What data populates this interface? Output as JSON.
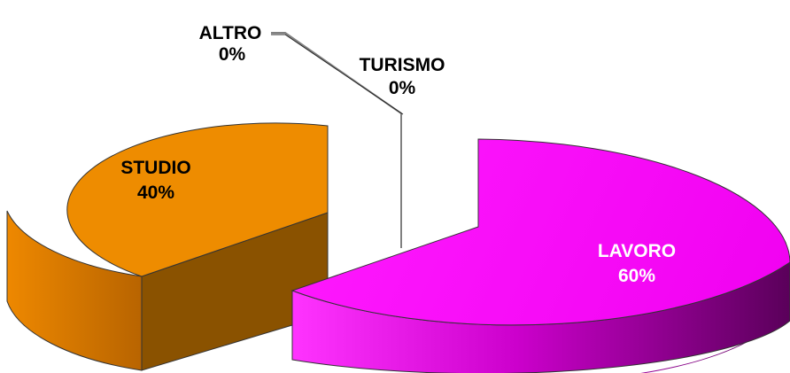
{
  "chart_data": {
    "type": "pie",
    "style": "3d-exploded",
    "slices": [
      {
        "label": "LAVORO",
        "value": 60,
        "value_text": "60%",
        "color": "#ff00ff",
        "label_color": "#ffffff"
      },
      {
        "label": "STUDIO",
        "value": 40,
        "value_text": "40%",
        "color": "#ff9900",
        "label_color": "#000000"
      },
      {
        "label": "TURISMO",
        "value": 0,
        "value_text": "0%",
        "color": "#000000",
        "label_color": "#000000"
      },
      {
        "label": "ALTRO",
        "value": 0,
        "value_text": "0%",
        "color": "#000000",
        "label_color": "#000000"
      }
    ]
  }
}
